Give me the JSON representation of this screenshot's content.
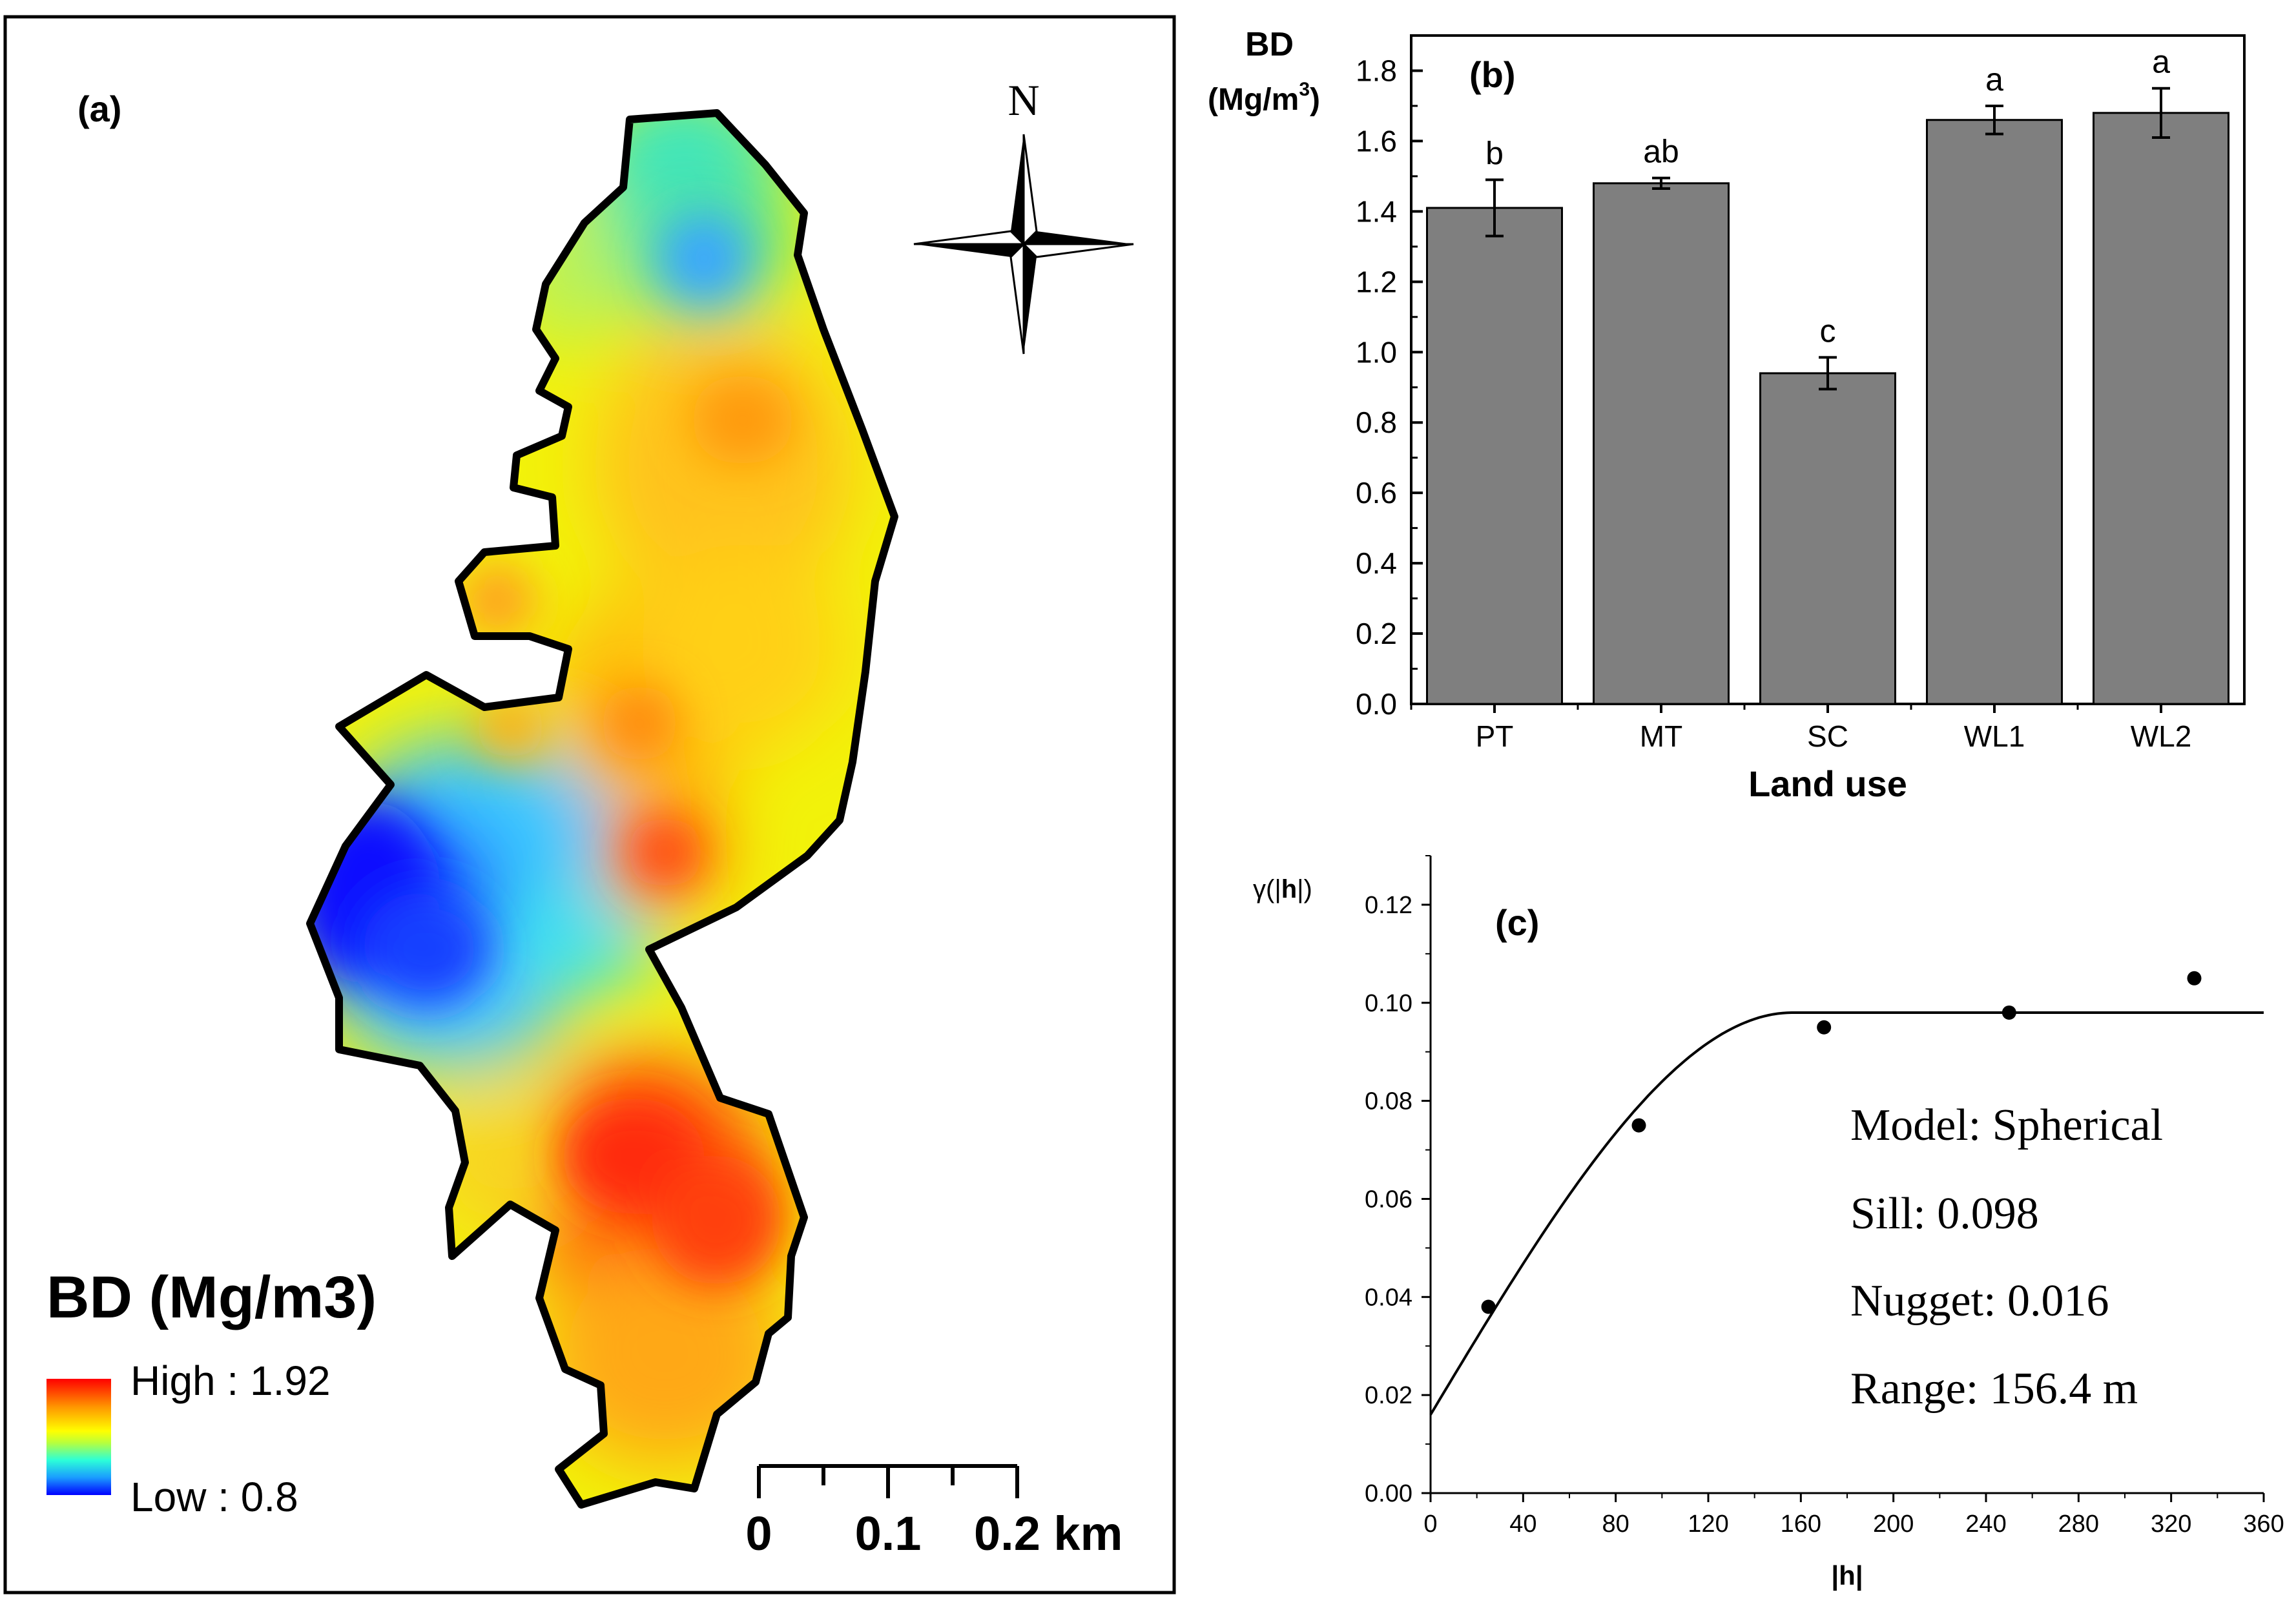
{
  "panel_a": {
    "label": "(a)",
    "north_label": "N",
    "legend_title": "BD (Mg/m3)",
    "legend_high": "High : 1.92",
    "legend_low": "Low : 0.8",
    "scale_ticks": [
      "0",
      "0.1",
      "0.2 km"
    ]
  },
  "panel_b": {
    "label": "(b)",
    "y_title_line1": "BD",
    "y_title_line2": "(Mg/m",
    "y_title_sup": "3",
    "y_title_close": ")"
  },
  "panel_c": {
    "label": "(c)",
    "y_title_prefix": "γ(|",
    "y_title_bold": "h",
    "y_title_suffix": "|)",
    "model_text": "Model: Spherical",
    "sill_text": "Sill: 0.098",
    "nugget_text": "Nugget: 0.016",
    "range_text": "Range: 156.4 m"
  },
  "chart_data": [
    {
      "type": "bar",
      "title": "(b)",
      "categories": [
        "PT",
        "MT",
        "SC",
        "WL1",
        "WL2"
      ],
      "values": [
        1.41,
        1.48,
        0.94,
        1.66,
        1.68
      ],
      "errors": [
        0.08,
        0.015,
        0.045,
        0.04,
        0.07
      ],
      "letters": [
        "b",
        "ab",
        "c",
        "a",
        "a"
      ],
      "xlabel": "Land use",
      "ylabel": "BD (Mg/m3)",
      "ylim": [
        0,
        1.9
      ],
      "yticks": [
        0.0,
        0.2,
        0.4,
        0.6,
        0.8,
        1.0,
        1.2,
        1.4,
        1.6,
        1.8
      ],
      "ytick_labels": [
        "0.0",
        "0.2",
        "0.4",
        "0.6",
        "0.8",
        "1.0",
        "1.2",
        "1.4",
        "1.6",
        "1.8"
      ],
      "bar_color": "#7f7f7f"
    },
    {
      "type": "scatter",
      "title": "(c)",
      "points_x": [
        25,
        90,
        170,
        250,
        330
      ],
      "points_y": [
        0.038,
        0.075,
        0.095,
        0.098,
        0.105
      ],
      "model": {
        "name": "Spherical",
        "nugget": 0.016,
        "sill": 0.098,
        "range": 156.4
      },
      "xlabel": "|h|",
      "ylabel": "γ(|h|)",
      "xlim": [
        0,
        360
      ],
      "ylim": [
        0,
        0.13
      ],
      "xticks": [
        0,
        40,
        80,
        120,
        160,
        200,
        240,
        280,
        320,
        360
      ],
      "xtick_labels": [
        "0",
        "40",
        "80",
        "120",
        "160",
        "200",
        "240",
        "280",
        "320",
        "360"
      ],
      "yticks": [
        0.0,
        0.02,
        0.04,
        0.06,
        0.08,
        0.1,
        0.12
      ],
      "ytick_labels": [
        "0.00",
        "0.02",
        "0.04",
        "0.06",
        "0.08",
        "0.10",
        "0.12"
      ]
    }
  ]
}
